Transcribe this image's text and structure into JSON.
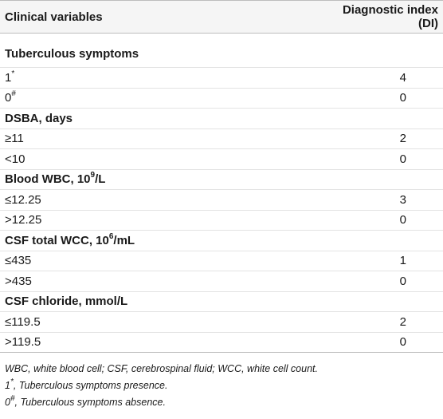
{
  "table": {
    "headers": {
      "variable": "Clinical variables",
      "index": "Diagnostic index (DI)"
    },
    "groups": [
      {
        "title": "Tuberculous symptoms",
        "rows": [
          {
            "label": "1",
            "sup": "*",
            "value": "4"
          },
          {
            "label": "0",
            "sup": "#",
            "value": "0"
          }
        ]
      },
      {
        "title": "DSBA, days",
        "rows": [
          {
            "label": "≥11",
            "sup": "",
            "value": "2"
          },
          {
            "label": "<10",
            "sup": "",
            "value": "0"
          }
        ]
      },
      {
        "title_pre": "Blood WBC, 10",
        "title_sup": "9",
        "title_post": "/L",
        "rows": [
          {
            "label": "≤12.25",
            "sup": "",
            "value": "3"
          },
          {
            "label": ">12.25",
            "sup": "",
            "value": "0"
          }
        ]
      },
      {
        "title_pre": "CSF total WCC, 10",
        "title_sup": "6",
        "title_post": "/mL",
        "rows": [
          {
            "label": "≤435",
            "sup": "",
            "value": "1"
          },
          {
            "label": ">435",
            "sup": "",
            "value": "0"
          }
        ]
      },
      {
        "title": "CSF chloride, mmol/L",
        "rows": [
          {
            "label": "≤119.5",
            "sup": "",
            "value": "2"
          },
          {
            "label": ">119.5",
            "sup": "",
            "value": "0"
          }
        ]
      }
    ]
  },
  "notes": {
    "abbreviations": "WBC, white blood cell; CSF, cerebrospinal fluid; WCC, white cell count.",
    "note1_label": "1",
    "note1_sup": "*",
    "note1_text": ", Tuberculous symptoms presence.",
    "note2_label": "0",
    "note2_sup": "#",
    "note2_text": ", Tuberculous symptoms absence."
  }
}
